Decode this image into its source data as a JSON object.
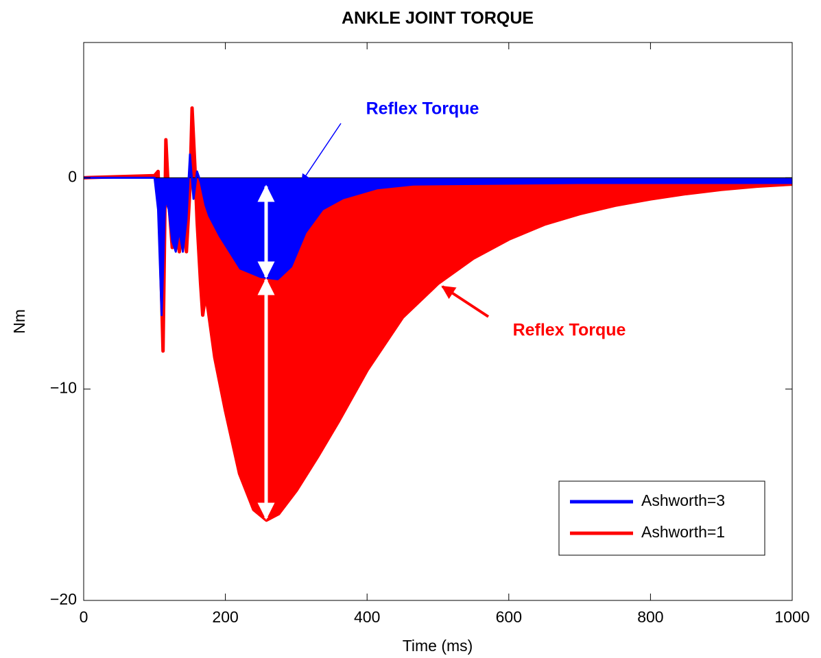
{
  "chart_data": {
    "type": "line",
    "title": "ANKLE JOINT TORQUE",
    "xlabel": "Time (ms)",
    "ylabel": "Nm",
    "xlim": [
      0,
      1000
    ],
    "ylim": [
      -20,
      6.4
    ],
    "xticks": [
      0,
      200,
      400,
      600,
      800,
      1000
    ],
    "yticks": [
      {
        "value": -20,
        "label": "−20"
      },
      {
        "value": -10,
        "label": "−10"
      },
      0
    ],
    "legend": "lower right",
    "filled": true,
    "series": [
      {
        "name": "Ashworth=1",
        "color": "#ff0000",
        "x": [
          0,
          100,
          105,
          108,
          112,
          116,
          120,
          125,
          130,
          135,
          140,
          145,
          150,
          153,
          157,
          160,
          165,
          168,
          172,
          176,
          185,
          200,
          220,
          240,
          258,
          275,
          300,
          330,
          360,
          400,
          450,
          500,
          550,
          600,
          650,
          700,
          750,
          800,
          850,
          900,
          950,
          1000
        ],
        "values": [
          0,
          0.1,
          0.3,
          -3,
          -8.2,
          1.8,
          -1,
          -3.3,
          -2,
          -3.5,
          -1.7,
          -3.5,
          -0.5,
          3.3,
          0.5,
          -2,
          -5,
          -6.5,
          -5.5,
          -6.3,
          -8.5,
          -11,
          -14,
          -15.7,
          -16.2,
          -15.9,
          -14.8,
          -13.2,
          -11.5,
          -9.1,
          -6.6,
          -5.0,
          -3.8,
          -2.9,
          -2.2,
          -1.7,
          -1.3,
          -1.0,
          -0.75,
          -0.55,
          -0.4,
          -0.3
        ]
      },
      {
        "name": "Ashworth=3",
        "color": "#0000ff",
        "x": [
          0,
          100,
          105,
          110,
          115,
          120,
          125,
          130,
          135,
          140,
          145,
          150,
          155,
          160,
          165,
          172,
          177,
          192,
          221,
          250,
          274,
          293,
          313,
          337,
          366,
          414,
          465,
          700,
          1000
        ],
        "values": [
          0,
          0,
          -1.5,
          -6.5,
          -1.0,
          -1.5,
          -3,
          -3.5,
          -2.5,
          -3.5,
          -2,
          1.1,
          -1,
          0.3,
          -0.2,
          -1.3,
          -1.8,
          -2.76,
          -4.3,
          -4.7,
          -4.8,
          -4.2,
          -2.6,
          -1.5,
          -0.97,
          -0.5,
          -0.32,
          -0.25,
          -0.25
        ]
      }
    ],
    "annotations": [
      "Reflex Torque",
      "Reflex Torque"
    ]
  }
}
